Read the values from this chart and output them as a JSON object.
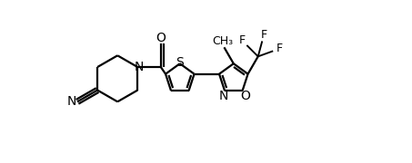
{
  "background": "#ffffff",
  "line_color": "#000000",
  "line_width": 1.6,
  "font_size": 10,
  "figsize": [
    4.53,
    1.8
  ],
  "dpi": 100,
  "xlim": [
    0,
    10.5
  ],
  "ylim": [
    -2.8,
    2.8
  ]
}
